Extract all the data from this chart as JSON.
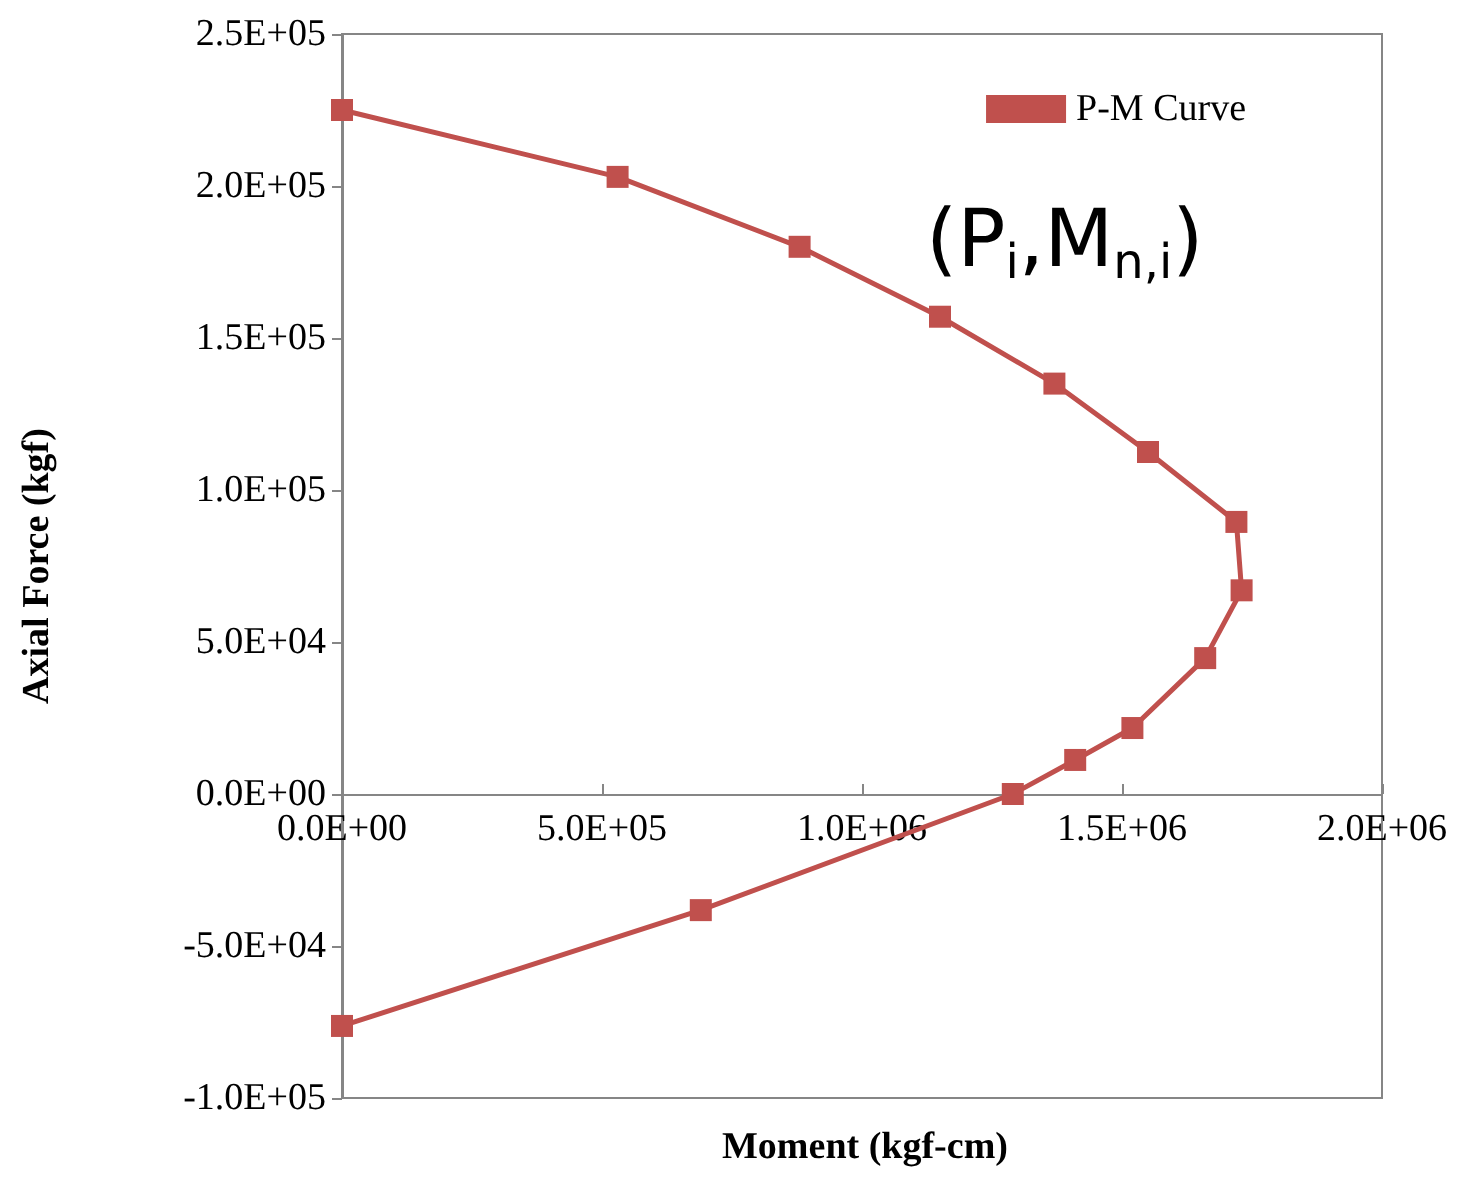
{
  "chart_data": {
    "type": "line",
    "xlabel": "Moment (kgf-cm)",
    "ylabel": "Axial Force (kgf)",
    "annotations": [
      "(P$_{i}$,M$_{n,i}$)"
    ],
    "x": [
      0,
      530000,
      880000,
      1150000,
      1370000,
      1550000,
      1720000,
      1730000,
      1660000,
      1520000,
      1410000,
      1290000,
      690000,
      0
    ],
    "series": [
      {
        "name": "P-M Curve",
        "color": "#c0504d",
        "values": [
          225000,
          203000,
          180000,
          157000,
          135000,
          112500,
          89500,
          67000,
          44700,
          21700,
          11200,
          0,
          -38200,
          -76300
        ]
      }
    ],
    "xlim": [
      0,
      2000000
    ],
    "xticks": [
      {
        "value": 0,
        "label": "0.0E+00"
      },
      {
        "value": 500000,
        "label": "5.0E+05"
      },
      {
        "value": 1000000,
        "label": "1.0E+06"
      },
      {
        "value": 1500000,
        "label": "1.5E+06"
      },
      {
        "value": 2000000,
        "label": "2.0E+06"
      }
    ],
    "ylim": [
      -100000,
      250000
    ],
    "yticks": [
      {
        "value": -100000,
        "label": "-1.0E+05"
      },
      {
        "value": -50000,
        "label": "-5.0E+04"
      },
      {
        "value": 0,
        "label": "0.0E+00"
      },
      {
        "value": 50000,
        "label": "5.0E+04"
      },
      {
        "value": 100000,
        "label": "1.0E+05"
      },
      {
        "value": 150000,
        "label": "1.5E+05"
      },
      {
        "value": 200000,
        "label": "2.0E+05"
      },
      {
        "value": 250000,
        "label": "2.5E+05"
      }
    ],
    "grid": false,
    "legend": "top right",
    "marker": "square",
    "line_style": "solid"
  }
}
